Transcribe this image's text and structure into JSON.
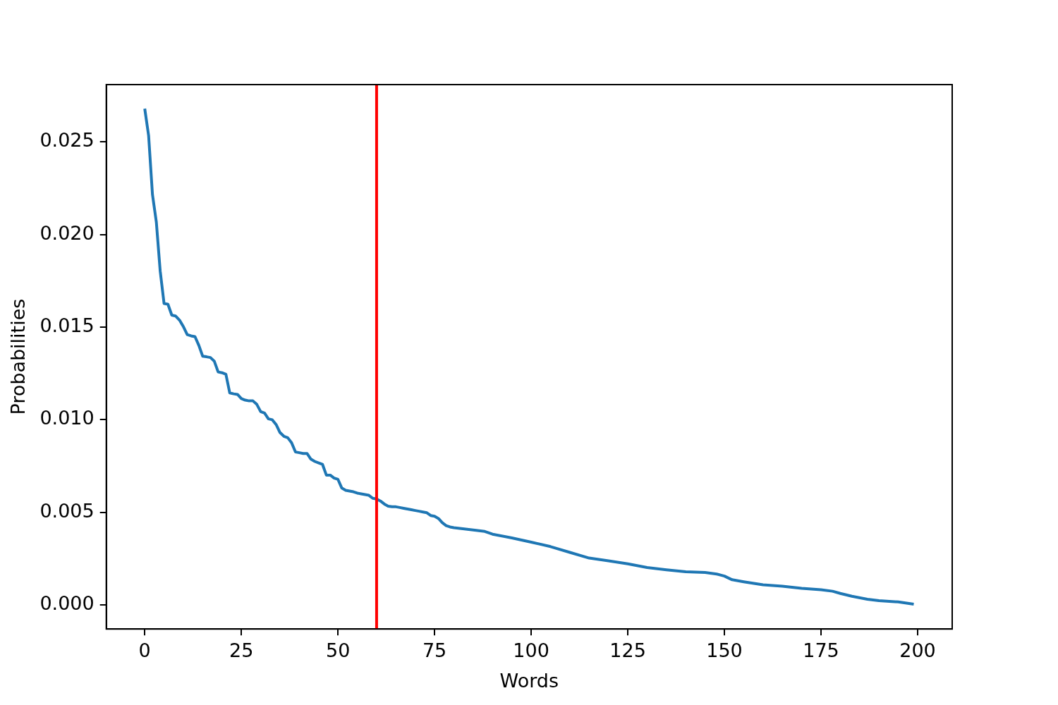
{
  "chart_data": {
    "type": "line",
    "xlabel": "Words",
    "ylabel": "Probabilities",
    "x": [
      0,
      1,
      2,
      3,
      4,
      5,
      6,
      7,
      8,
      9,
      10,
      11,
      12,
      13,
      14,
      15,
      16,
      17,
      18,
      19,
      20,
      21,
      22,
      23,
      24,
      25,
      26,
      27,
      28,
      29,
      30,
      31,
      32,
      33,
      34,
      35,
      36,
      37,
      38,
      39,
      40,
      41,
      42,
      43,
      44,
      45,
      46,
      47,
      48,
      49,
      50,
      51,
      52,
      53,
      54,
      55,
      56,
      57,
      58,
      59,
      60,
      61,
      62,
      63,
      64,
      65,
      66,
      67,
      68,
      69,
      70,
      71,
      72,
      73,
      74,
      75,
      76,
      77,
      78,
      79,
      80,
      85,
      88,
      90,
      95,
      100,
      105,
      110,
      115,
      120,
      125,
      130,
      135,
      140,
      145,
      148,
      150,
      152,
      155,
      160,
      165,
      170,
      175,
      178,
      180,
      183,
      187,
      190,
      195,
      199
    ],
    "series": [
      {
        "color": "#1f77b4",
        "values": [
          0.0268,
          0.02535,
          0.02216,
          0.02068,
          0.01803,
          0.01628,
          0.01624,
          0.01565,
          0.0156,
          0.01538,
          0.01503,
          0.0146,
          0.01453,
          0.01449,
          0.01402,
          0.01343,
          0.0134,
          0.01336,
          0.01316,
          0.01258,
          0.01254,
          0.01246,
          0.01145,
          0.0114,
          0.01137,
          0.01114,
          0.01106,
          0.01102,
          0.01102,
          0.01083,
          0.01044,
          0.01036,
          0.01005,
          0.01,
          0.00974,
          0.00931,
          0.00911,
          0.00903,
          0.00876,
          0.00826,
          0.00822,
          0.00818,
          0.00818,
          0.00787,
          0.00775,
          0.00767,
          0.00759,
          0.00701,
          0.00701,
          0.00685,
          0.00678,
          0.00631,
          0.00619,
          0.00615,
          0.00611,
          0.00604,
          0.006,
          0.00596,
          0.00592,
          0.00576,
          0.00572,
          0.00561,
          0.00545,
          0.00533,
          0.0053,
          0.0053,
          0.00526,
          0.00522,
          0.00518,
          0.00514,
          0.0051,
          0.00506,
          0.00502,
          0.00498,
          0.00483,
          0.00479,
          0.00467,
          0.00444,
          0.00428,
          0.00421,
          0.00417,
          0.00405,
          0.00397,
          0.00382,
          0.00362,
          0.00339,
          0.00315,
          0.00284,
          0.00253,
          0.00238,
          0.00222,
          0.00202,
          0.0019,
          0.00179,
          0.00175,
          0.00167,
          0.00156,
          0.00136,
          0.00125,
          0.00109,
          0.00101,
          0.0009,
          0.00082,
          0.00074,
          0.00062,
          0.00047,
          0.00031,
          0.00023,
          0.00016,
          4e-05
        ]
      }
    ],
    "xlim": [
      -9.95,
      208.95
    ],
    "xticks": [
      0,
      25,
      50,
      75,
      100,
      125,
      150,
      175,
      200
    ],
    "ylim": [
      -0.0013,
      0.0281
    ],
    "yticks": [
      {
        "value": 0,
        "label": "0.000"
      },
      {
        "value": 0.005,
        "label": "0.005"
      },
      {
        "value": 0.01,
        "label": "0.010"
      },
      {
        "value": 0.015,
        "label": "0.015"
      },
      {
        "value": 0.02,
        "label": "0.020"
      },
      {
        "value": 0.025,
        "label": "0.025"
      }
    ],
    "ref_lines": [
      {
        "axis": "x",
        "value": 60,
        "color": "#ff0000"
      }
    ],
    "grid": false,
    "legend": false,
    "marker": "none",
    "line_style": "solid"
  }
}
